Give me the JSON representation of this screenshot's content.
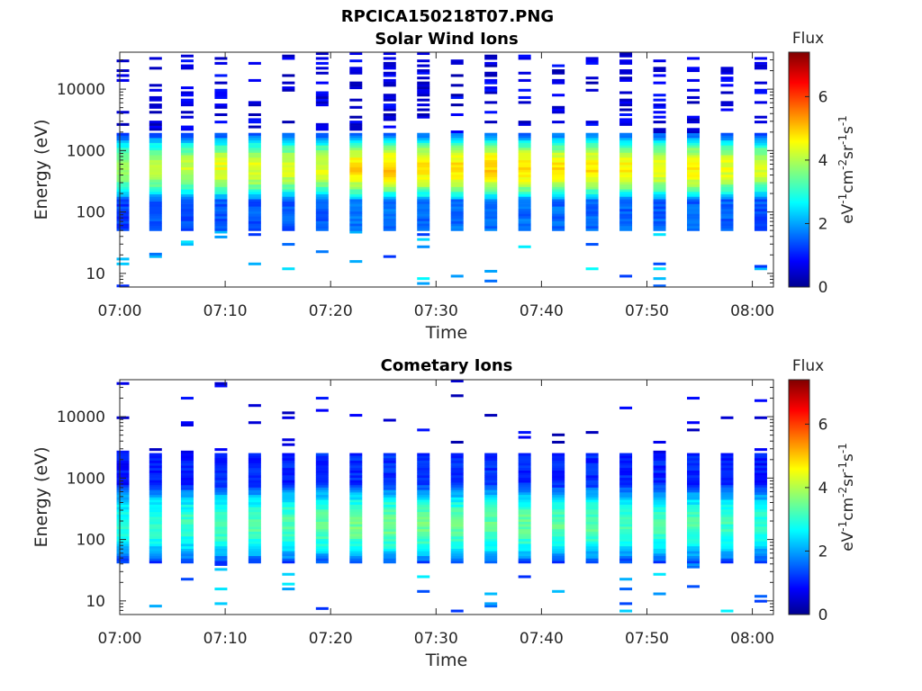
{
  "figure": {
    "title": "RPCICA150218T07.PNG"
  },
  "colormap": {
    "name": "jet",
    "stops": [
      "#00008f",
      "#0000ff",
      "#00ffff",
      "#ffff00",
      "#ff0000",
      "#800000"
    ]
  },
  "chart_data": [
    {
      "type": "heatmap",
      "title": "Solar Wind Ions",
      "xlabel": "Time",
      "ylabel": "Energy (eV)",
      "y_scale": "log",
      "ylim": [
        6,
        40000
      ],
      "xlim": [
        "07:00",
        "08:02"
      ],
      "x_ticks": [
        "07:00",
        "07:10",
        "07:20",
        "07:30",
        "07:40",
        "07:50",
        "08:00"
      ],
      "y_ticks": [
        "10",
        "100",
        "1000",
        "10000"
      ],
      "scan_times_min": [
        0.3,
        3.4,
        6.4,
        9.6,
        12.8,
        16.0,
        19.2,
        22.4,
        25.6,
        28.8,
        32.0,
        35.2,
        38.4,
        41.6,
        44.8,
        48.0,
        51.2,
        54.4,
        57.6,
        60.8
      ],
      "scan_peak_flux": [
        3.9,
        4.2,
        4.2,
        4.5,
        4.4,
        4.4,
        4.4,
        4.9,
        5.0,
        4.9,
        4.9,
        5.0,
        4.9,
        4.8,
        4.8,
        4.7,
        4.6,
        4.7,
        4.5,
        4.3
      ],
      "band_energy_ev": [
        50,
        2000
      ],
      "peak_energy_ev": [
        300,
        900
      ],
      "colorbar": {
        "title": "Flux",
        "label": "eV-1cm-2sr-1s-1",
        "range": [
          0,
          7.4
        ],
        "ticks": [
          "0",
          "2",
          "4",
          "6"
        ]
      }
    },
    {
      "type": "heatmap",
      "title": "Cometary Ions",
      "xlabel": "Time",
      "ylabel": "Energy (eV)",
      "y_scale": "log",
      "ylim": [
        6,
        40000
      ],
      "xlim": [
        "07:00",
        "08:02"
      ],
      "x_ticks": [
        "07:00",
        "07:10",
        "07:20",
        "07:30",
        "07:40",
        "07:50",
        "08:00"
      ],
      "y_ticks": [
        "10",
        "100",
        "1000",
        "10000"
      ],
      "scan_times_min": [
        0.3,
        3.4,
        6.4,
        9.6,
        12.8,
        16.0,
        19.2,
        22.4,
        25.6,
        28.8,
        32.0,
        35.2,
        38.4,
        41.6,
        44.8,
        48.0,
        51.2,
        54.4,
        57.6,
        60.8
      ],
      "scan_peak_flux": [
        3.0,
        3.2,
        3.2,
        3.4,
        3.4,
        3.4,
        3.5,
        3.6,
        3.6,
        3.6,
        3.5,
        3.5,
        3.5,
        3.4,
        3.4,
        3.3,
        3.3,
        3.3,
        3.2,
        3.1
      ],
      "band_energy_ev": [
        40,
        2500
      ],
      "peak_energy_ev": [
        80,
        400
      ],
      "colorbar": {
        "title": "Flux",
        "label": "eV-1cm-2sr-1s-1",
        "range": [
          0,
          7.4
        ],
        "ticks": [
          "0",
          "2",
          "4",
          "6"
        ]
      }
    }
  ]
}
